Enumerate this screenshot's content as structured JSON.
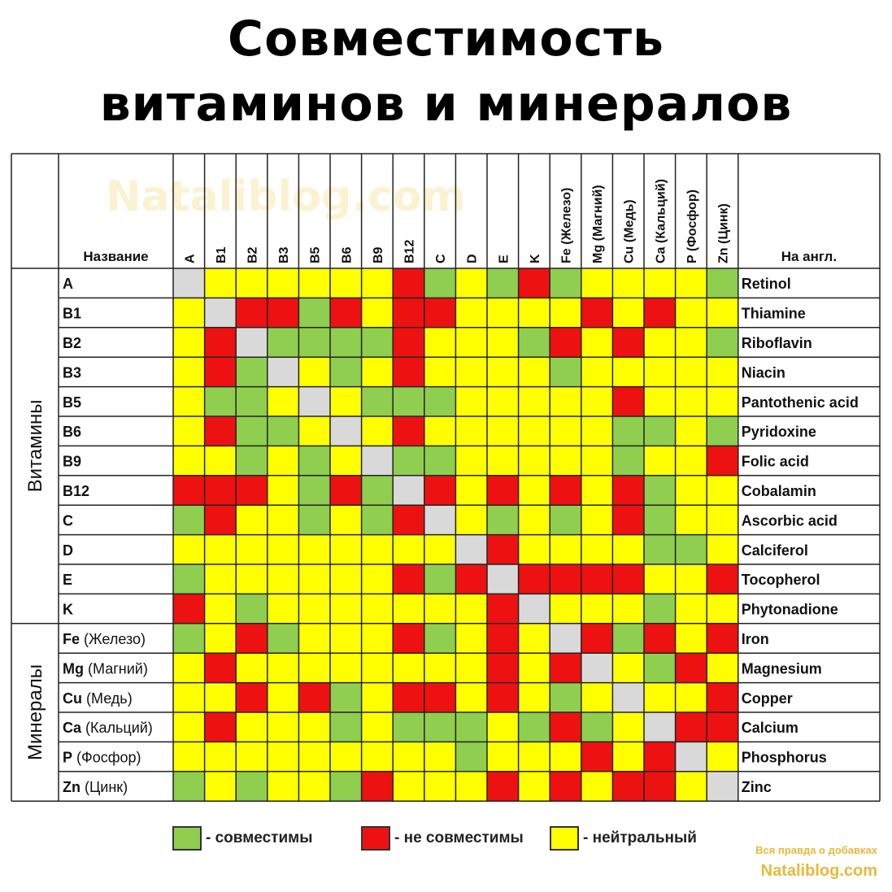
{
  "title": {
    "line1": "Совместимость",
    "line2": "витаминов и минералов"
  },
  "watermark": "Nataliblog.com",
  "colors": {
    "compatible": "#8fce4f",
    "incompatible": "#ee1111",
    "neutral": "#ffff00",
    "self": "#d9d9d9"
  },
  "chart_data": {
    "type": "heatmap",
    "header_name": "Название",
    "header_english": "На англ.",
    "columns": [
      "A",
      "B1",
      "B2",
      "B3",
      "B5",
      "B6",
      "B9",
      "B12",
      "C",
      "D",
      "E",
      "K",
      "Fe (Железо)",
      "Mg (Магний)",
      "Cu (Медь)",
      "Ca (Кальций)",
      "P (Фосфор)",
      "Zn (Цинк)"
    ],
    "groups": [
      {
        "label": "Витамины",
        "rows": 12
      },
      {
        "label": "Минералы",
        "rows": 6
      }
    ],
    "rows": [
      {
        "symbol": "A",
        "name": "",
        "english": "Retinol",
        "cells": "SYYYYYYRGYGRGYYYYG"
      },
      {
        "symbol": "B1",
        "name": "",
        "english": "Thiamine",
        "cells": "YSRRGRYRRYYYYRYRYY"
      },
      {
        "symbol": "B2",
        "name": "",
        "english": "Riboflavin",
        "cells": "YRSGGGGRYYYGRYRYYG"
      },
      {
        "symbol": "B3",
        "name": "",
        "english": "Niacin",
        "cells": "YRGSYGYRYYYYGYYYYY"
      },
      {
        "symbol": "B5",
        "name": "",
        "english": "Pantothenic acid",
        "cells": "YGGYSYGGGYYYYYRYYY"
      },
      {
        "symbol": "B6",
        "name": "",
        "english": "Pyridoxine",
        "cells": "YRGGYSYRYYYYYYGGYG"
      },
      {
        "symbol": "B9",
        "name": "",
        "english": "Folic acid",
        "cells": "YYGYGYSGGYYYYYGYYR"
      },
      {
        "symbol": "B12",
        "name": "",
        "english": "Cobalamin",
        "cells": "RRRYGRGSRYRYRYRGYY"
      },
      {
        "symbol": "C",
        "name": "",
        "english": "Ascorbic acid",
        "cells": "GRYYGYGRSYGYGYRGYY"
      },
      {
        "symbol": "D",
        "name": "",
        "english": "Calciferol",
        "cells": "YYYYYYYYYSRYYYYGGY"
      },
      {
        "symbol": "E",
        "name": "",
        "english": "Tocopherol",
        "cells": "GYYYYYYRGRSRRRRYYR"
      },
      {
        "symbol": "K",
        "name": "",
        "english": "Phytonadione",
        "cells": "RYGYYYYYYYRSYYYGYY"
      },
      {
        "symbol": "Fe",
        "name": "(Железо)",
        "english": "Iron",
        "cells": "GYRGYYYRGYRYSRGRYR"
      },
      {
        "symbol": "Mg",
        "name": "(Магний)",
        "english": "Magnesium",
        "cells": "YRYYYYYYYYRYRSYGRY"
      },
      {
        "symbol": "Cu",
        "name": "(Медь)",
        "english": "Copper",
        "cells": "YYRYRGYRRYRYGYSYYR"
      },
      {
        "symbol": "Ca",
        "name": "(Кальций)",
        "english": "Calcium",
        "cells": "YRYYYGYGGGYGRGYSRR"
      },
      {
        "symbol": "P",
        "name": "(Фосфор)",
        "english": "Phosphorus",
        "cells": "YYYYYYYYYGYYYRYRSY"
      },
      {
        "symbol": "Zn",
        "name": "(Цинк)",
        "english": "Zinc",
        "cells": "GYGYYGRYYYRYRYRRYS"
      }
    ],
    "cell_codes": {
      "G": "compatible",
      "R": "incompatible",
      "Y": "neutral",
      "S": "self"
    }
  },
  "legend": [
    {
      "key": "compatible",
      "label": "- совместимы"
    },
    {
      "key": "incompatible",
      "label": "- не совместимы"
    },
    {
      "key": "neutral",
      "label": "- нейтральный"
    }
  ],
  "credit": {
    "line1": "Вся правда о добавках",
    "line2": "Nataliblog.com"
  }
}
